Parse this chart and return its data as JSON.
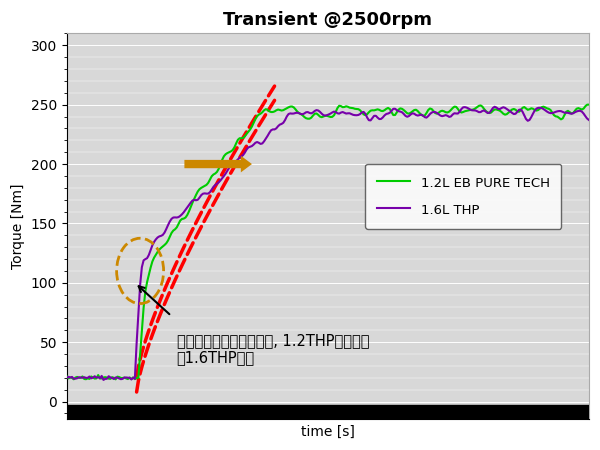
{
  "title": "Transient @2500rpm",
  "xlabel": "time [s]",
  "ylabel": "Torque [Nm]",
  "ylim": [
    -15,
    310
  ],
  "yticks": [
    0,
    50,
    100,
    150,
    200,
    250,
    300
  ],
  "background_color": "#d8d8d8",
  "legend_labels": [
    "1.2L EB PURE TECH",
    "1.6L THP"
  ],
  "green_color": "#00cc00",
  "purple_color": "#7700aa",
  "red_color": "#ff0000",
  "arrow_fill_color": "#cc8800",
  "annotation_text": "借助涡轮增压和进气优化, 1.2THP动力响应\n比1.6THP还快",
  "title_fontsize": 13,
  "label_fontsize": 10,
  "figsize": [
    6.0,
    4.5
  ],
  "dpi": 100
}
